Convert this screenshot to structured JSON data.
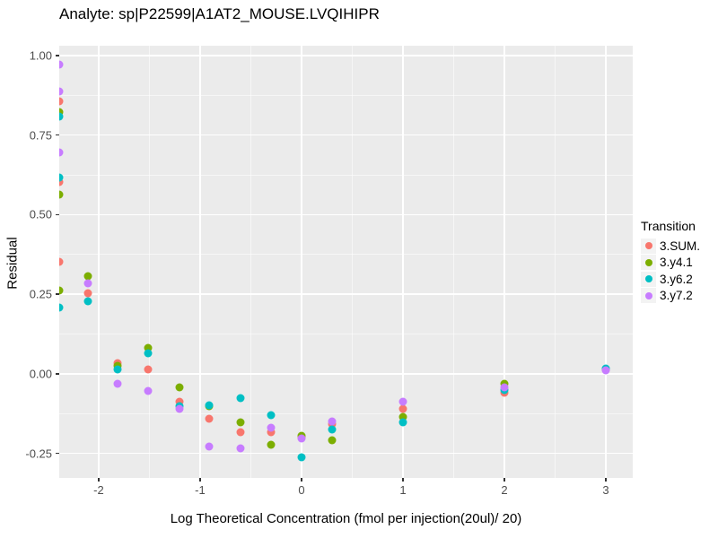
{
  "title": "Analyte: sp|P22599|A1AT2_MOUSE.LVQIHIPR",
  "chart_data": {
    "type": "scatter",
    "title": "Analyte: sp|P22599|A1AT2_MOUSE.LVQIHIPR",
    "xlabel": "Log Theoretical Concentration (fmol per injection(20ul)/ 20)",
    "ylabel": "Residual",
    "xlim": [
      -2.389,
      3.266
    ],
    "ylim": [
      -0.327,
      1.031
    ],
    "x_major_ticks": [
      -2,
      -1,
      0,
      1,
      2,
      3
    ],
    "x_tick_labels": [
      "-2",
      "-1",
      "0",
      "1",
      "2",
      "3"
    ],
    "x_minor_ticks": [
      -1.5,
      -0.5,
      0.5,
      1.5,
      2.5
    ],
    "y_major_ticks": [
      1.0,
      0.75,
      0.5,
      0.25,
      0.0,
      -0.25
    ],
    "y_tick_labels": [
      "1.00",
      "0.75",
      "0.50",
      "0.25",
      "0.00",
      "-0.25"
    ],
    "y_minor_ticks": [
      0.875,
      0.625,
      0.375,
      0.125,
      -0.125
    ],
    "grid": true,
    "panel_background": "#EBEBEB",
    "gridline_color": "#FFFFFF",
    "legend_title": "Transition",
    "legend_position": "right",
    "series": [
      {
        "name": "3.SUM.",
        "color": "#F8766D",
        "points": [
          [
            -2.39,
            0.855
          ],
          [
            -2.39,
            0.602
          ],
          [
            -2.39,
            0.353
          ],
          [
            -2.11,
            0.254
          ],
          [
            -1.81,
            0.034
          ],
          [
            -1.51,
            0.015
          ],
          [
            -1.2,
            -0.088
          ],
          [
            -0.91,
            -0.14
          ],
          [
            -0.6,
            -0.182
          ],
          [
            -0.3,
            -0.182
          ],
          [
            0.0,
            -0.2
          ],
          [
            0.3,
            -0.159
          ],
          [
            1.0,
            -0.11
          ],
          [
            2.0,
            -0.06
          ],
          [
            3.0,
            0.013
          ]
        ]
      },
      {
        "name": "3.y4.1",
        "color": "#7CAE00",
        "points": [
          [
            -2.39,
            0.822
          ],
          [
            -2.39,
            0.564
          ],
          [
            -2.39,
            0.261
          ],
          [
            -2.11,
            0.306
          ],
          [
            -1.81,
            0.025
          ],
          [
            -1.51,
            0.081
          ],
          [
            -1.2,
            -0.043
          ],
          [
            -0.91,
            -0.103
          ],
          [
            -0.6,
            -0.151
          ],
          [
            -0.3,
            -0.223
          ],
          [
            0.0,
            -0.194
          ],
          [
            0.3,
            -0.208
          ],
          [
            1.0,
            -0.135
          ],
          [
            2.0,
            -0.032
          ],
          [
            3.0,
            0.014
          ]
        ]
      },
      {
        "name": "3.y6.2",
        "color": "#00BFC4",
        "points": [
          [
            -2.39,
            0.808
          ],
          [
            -2.39,
            0.616
          ],
          [
            -2.39,
            0.208
          ],
          [
            -2.11,
            0.228
          ],
          [
            -1.81,
            0.015
          ],
          [
            -1.51,
            0.064
          ],
          [
            -1.2,
            -0.101
          ],
          [
            -0.91,
            -0.099
          ],
          [
            -0.6,
            -0.076
          ],
          [
            -0.3,
            -0.13
          ],
          [
            0.0,
            -0.262
          ],
          [
            0.3,
            -0.175
          ],
          [
            1.0,
            -0.151
          ],
          [
            2.0,
            -0.051
          ],
          [
            3.0,
            0.016
          ]
        ]
      },
      {
        "name": "3.y7.2",
        "color": "#C77CFF",
        "points": [
          [
            -2.39,
            0.973
          ],
          [
            -2.39,
            0.888
          ],
          [
            -2.39,
            0.696
          ],
          [
            -2.11,
            0.283
          ],
          [
            -1.81,
            -0.032
          ],
          [
            -1.51,
            -0.053
          ],
          [
            -1.2,
            -0.11
          ],
          [
            -0.91,
            -0.227
          ],
          [
            -0.6,
            -0.234
          ],
          [
            -0.3,
            -0.17
          ],
          [
            0.0,
            -0.204
          ],
          [
            0.3,
            -0.149
          ],
          [
            1.0,
            -0.088
          ],
          [
            2.0,
            -0.043
          ],
          [
            3.0,
            0.01
          ]
        ]
      }
    ]
  }
}
